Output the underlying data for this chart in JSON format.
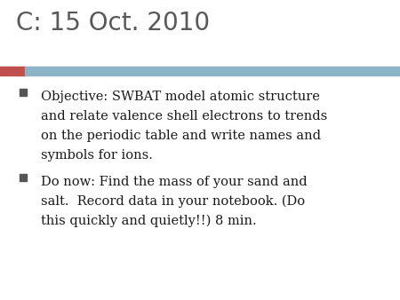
{
  "title": "C: 15 Oct. 2010",
  "title_color": "#595959",
  "title_fontsize": 20,
  "background_color": "#ffffff",
  "accent_bar_color": "#c0504d",
  "header_bar_color": "#8db3c7",
  "bullet1_lines": [
    "Objective: SWBAT model atomic structure",
    "and relate valence shell electrons to trends",
    "on the periodic table and write names and",
    "symbols for ions."
  ],
  "bullet2_lines": [
    "Do now: Find the mass of your sand and",
    "salt.  Record data in your notebook. (Do",
    "this quickly and quietly!!) 8 min."
  ],
  "bullet_color": "#1a1a1a",
  "bullet_fontsize": 10.5,
  "bullet_square_color": "#555555",
  "fig_width": 4.5,
  "fig_height": 3.38,
  "dpi": 100
}
